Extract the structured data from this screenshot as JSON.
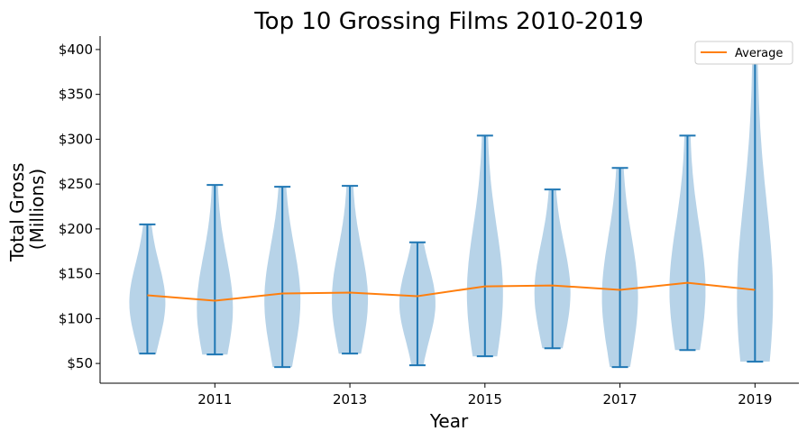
{
  "chart_data": {
    "type": "violin",
    "title": "Top 10 Grossing Films 2010-2019",
    "xlabel": "Year",
    "ylabel_lines": [
      "Total Gross",
      "(Millions)"
    ],
    "x_tick_labels": [
      "2011",
      "2013",
      "2015",
      "2017",
      "2019"
    ],
    "x_tick_values": [
      2011,
      2013,
      2015,
      2017,
      2019
    ],
    "y_tick_labels": [
      "$50",
      "$100",
      "$150",
      "$200",
      "$250",
      "$300",
      "$350",
      "$400"
    ],
    "y_tick_values": [
      50,
      100,
      150,
      200,
      250,
      300,
      350,
      400
    ],
    "xlim": [
      2009.3,
      2019.65
    ],
    "ylim": [
      28,
      415
    ],
    "violins": [
      {
        "x": 2010,
        "min": 61,
        "max": 205
      },
      {
        "x": 2011,
        "min": 60,
        "max": 249
      },
      {
        "x": 2012,
        "min": 46,
        "max": 247
      },
      {
        "x": 2013,
        "min": 61,
        "max": 248
      },
      {
        "x": 2014,
        "min": 48,
        "max": 185
      },
      {
        "x": 2015,
        "min": 58,
        "max": 304
      },
      {
        "x": 2016,
        "min": 67,
        "max": 244
      },
      {
        "x": 2017,
        "min": 46,
        "max": 268
      },
      {
        "x": 2018,
        "min": 65,
        "max": 304
      },
      {
        "x": 2019,
        "min": 52,
        "max": 400
      }
    ],
    "series": [
      {
        "name": "Average",
        "x": [
          2010,
          2011,
          2012,
          2013,
          2014,
          2015,
          2016,
          2017,
          2018,
          2019
        ],
        "values": [
          126,
          120,
          128,
          129,
          125,
          136,
          137,
          132,
          140,
          132
        ]
      }
    ],
    "legend": {
      "position": "top-right",
      "entries": [
        "Average"
      ]
    },
    "colors": {
      "violin_fill": "#b7d3e8",
      "violin_line": "#1f77b4",
      "average": "#ff7f0e"
    },
    "grid": false
  }
}
